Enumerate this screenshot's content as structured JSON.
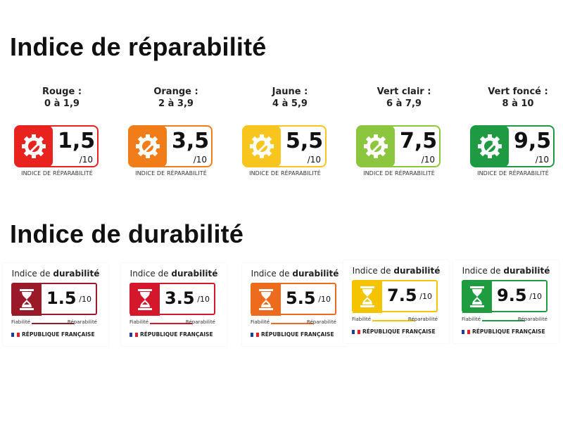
{
  "repairability": {
    "title": "Indice de réparabilité",
    "items": [
      {
        "caption_line1": "Rouge :",
        "caption_line2": "0 à 1,9",
        "score": "1,5",
        "max": "/10",
        "label": "INDICE DE RÉPARABILITÉ",
        "color": "#e8231f"
      },
      {
        "caption_line1": "Orange :",
        "caption_line2": "2 à 3,9",
        "score": "3,5",
        "max": "/10",
        "label": "INDICE DE RÉPARABILITÉ",
        "color": "#f07d19"
      },
      {
        "caption_line1": "Jaune :",
        "caption_line2": "4 à 5,9",
        "score": "5,5",
        "max": "/10",
        "label": "INDICE DE RÉPARABILITÉ",
        "color": "#f7c51e"
      },
      {
        "caption_line1": "Vert clair :",
        "caption_line2": "6 à 7,9",
        "score": "7,5",
        "max": "/10",
        "label": "INDICE DE RÉPARABILITÉ",
        "color": "#8cc63f"
      },
      {
        "caption_line1": "Vert foncé :",
        "caption_line2": "8 à 10",
        "score": "9,5",
        "max": "/10",
        "label": "INDICE DE RÉPARABILITÉ",
        "color": "#1e9a43"
      }
    ]
  },
  "durability": {
    "title": "Indice de durabilité",
    "items": [
      {
        "head_prefix": "Indice de ",
        "head_bold": "durabilité",
        "score": "1.5",
        "max": "/10",
        "fiabilite": "Fiabilité",
        "reparabilite": "Réparabilité",
        "republic": "RÉPUBLIQUE FRANÇAISE",
        "color": "#9b1a2a"
      },
      {
        "head_prefix": "Indice de ",
        "head_bold": "durabilité",
        "score": "3.5",
        "max": "/10",
        "fiabilite": "Fiabilité",
        "reparabilite": "Réparabilité",
        "republic": "RÉPUBLIQUE FRANÇAISE",
        "color": "#d4172b"
      },
      {
        "head_prefix": "Indice de ",
        "head_bold": "durabilité",
        "score": "5.5",
        "max": "/10",
        "fiabilite": "Fiabilité",
        "reparabilite": "Réparabilité",
        "republic": "RÉPUBLIQUE FRANÇAISE",
        "color": "#ec6b1c"
      },
      {
        "head_prefix": "Indice de ",
        "head_bold": "durabilité",
        "score": "7.5",
        "max": "/10",
        "fiabilite": "Fiabilité",
        "reparabilite": "Réparabilité",
        "republic": "RÉPUBLIQUE FRANÇAISE",
        "color": "#f5c400"
      },
      {
        "head_prefix": "Indice de ",
        "head_bold": "durabilité",
        "score": "9.5",
        "max": "/10",
        "fiabilite": "Fiabilité",
        "reparabilite": "Réparabilité",
        "republic": "RÉPUBLIQUE FRANÇAISE",
        "color": "#1f9c3f"
      }
    ]
  },
  "icons": {
    "repairability": "gear-wrench-icon",
    "durability": "hourglass-icon",
    "flag": "french-flag-icon"
  }
}
